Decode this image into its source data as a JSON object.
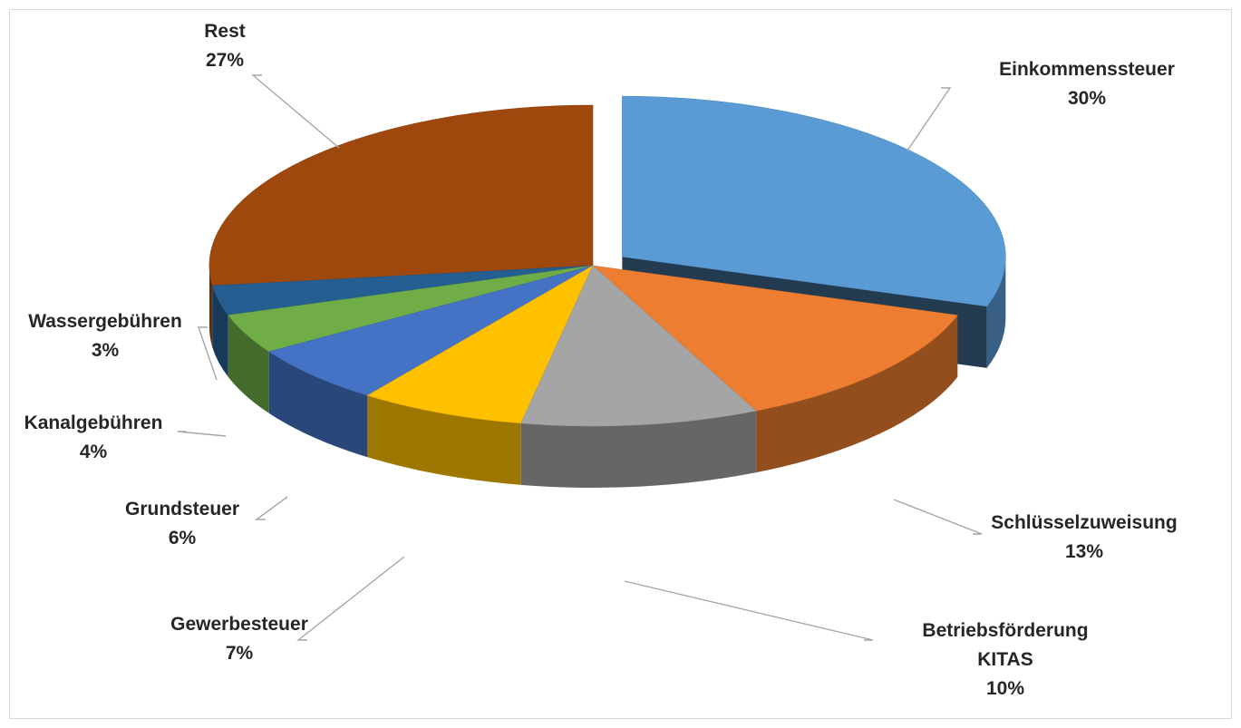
{
  "chart_data": {
    "type": "pie",
    "variant": "3d-exploded",
    "title": "",
    "slices": [
      {
        "label": "Einkommenssteuer",
        "value": 30,
        "percent_label": "30%",
        "color": "#5B9BD5",
        "exploded": true
      },
      {
        "label": "Schlüsselzuweisung",
        "value": 13,
        "percent_label": "13%",
        "color": "#ED7D31"
      },
      {
        "label_lines": [
          "Betriebsförderung",
          "KITAS"
        ],
        "label": "Betriebsförderung KITAS",
        "value": 10,
        "percent_label": "10%",
        "color": "#A5A5A5"
      },
      {
        "label": "Gewerbesteuer",
        "value": 7,
        "percent_label": "7%",
        "color": "#FFC000"
      },
      {
        "label": "Grundsteuer",
        "value": 6,
        "percent_label": "6%",
        "color": "#4472C4"
      },
      {
        "label": "Kanalgebühren",
        "value": 4,
        "percent_label": "4%",
        "color": "#70AD47"
      },
      {
        "label": "Wassergebühren",
        "value": 3,
        "percent_label": "3%",
        "color": "#255E91"
      },
      {
        "label": "Rest",
        "value": 27,
        "percent_label": "27%",
        "color": "#9E480E"
      }
    ],
    "legend": "none",
    "data_labels": "outside-with-leader-lines"
  }
}
